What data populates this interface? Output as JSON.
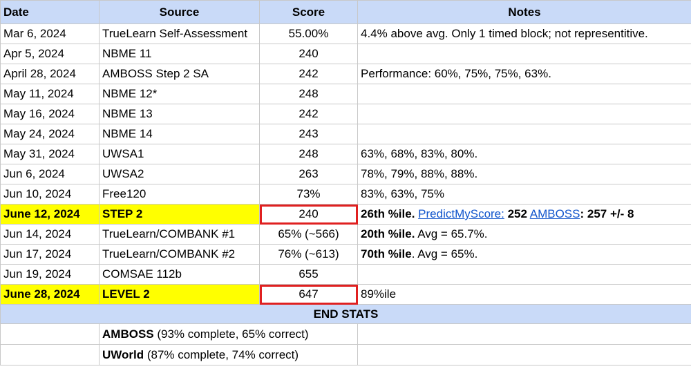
{
  "headers": {
    "date": "Date",
    "source": "Source",
    "score": "Score",
    "notes": "Notes"
  },
  "rows": [
    {
      "date": "Mar 6, 2024",
      "source": "TrueLearn Self-Assessment",
      "score": "55.00%",
      "notes": "4.4% above avg. Only 1 timed block; not representitive."
    },
    {
      "date": "Apr 5, 2024",
      "source": "NBME 11",
      "score": "240",
      "notes": ""
    },
    {
      "date": "April 28, 2024",
      "source": "AMBOSS Step 2 SA",
      "score": "242",
      "notes": "Performance: 60%, 75%, 75%, 63%."
    },
    {
      "date": "May 11, 2024",
      "source": "NBME 12*",
      "score": "248",
      "notes": ""
    },
    {
      "date": "May 16, 2024",
      "source": "NBME 13",
      "score": "242",
      "notes": ""
    },
    {
      "date": "May 24, 2024",
      "source": "NBME 14",
      "score": "243",
      "notes": ""
    },
    {
      "date": "May 31, 2024",
      "source": "UWSA1",
      "score": "248",
      "notes": "63%, 68%, 83%, 80%."
    },
    {
      "date": "Jun 6, 2024",
      "source": "UWSA2",
      "score": "263",
      "notes": "78%, 79%, 88%, 88%."
    },
    {
      "date": "Jun 10, 2024",
      "source": "Free120",
      "score": "73%",
      "notes": "83%, 63%, 75%"
    },
    {
      "date": "June 12, 2024",
      "source": "STEP 2",
      "score": "240",
      "notes_parts": {
        "pct": "26th %ile.",
        "link1": "PredictMyScore:",
        "val1": " 252",
        "link2": "AMBOSS",
        "val2": ": 257 +/- 8"
      }
    },
    {
      "date": "Jun 14, 2024",
      "source": "TrueLearn/COMBANK #1",
      "score": "65% (~566)",
      "notes_parts": {
        "bold": "20th %ile.",
        "rest": " Avg = 65.7%."
      }
    },
    {
      "date": "Jun 17, 2024",
      "source": "TrueLearn/COMBANK #2",
      "score": "76% (~613)",
      "notes_parts": {
        "bold": "70th %ile",
        "rest": ". Avg = 65%."
      }
    },
    {
      "date": "Jun 19, 2024",
      "source": "COMSAE 112b",
      "score": "655",
      "notes": ""
    },
    {
      "date": "June 28, 2024",
      "source": "LEVEL 2",
      "score": "647",
      "notes": "89%ile"
    }
  ],
  "end_stats": {
    "title": "END STATS",
    "items": [
      {
        "name": "AMBOSS",
        "detail": " (93% complete, 65% correct)"
      },
      {
        "name": "UWorld",
        "detail": " (87% complete, 74% correct)"
      }
    ]
  },
  "colors": {
    "header_bg": "#c9daf8",
    "highlight": "#ffff00",
    "box_border": "#e02020",
    "link": "#1155cc"
  }
}
